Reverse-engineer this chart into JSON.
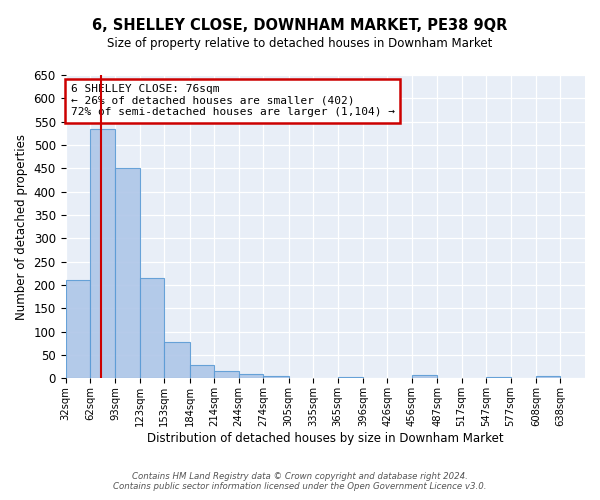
{
  "title": "6, SHELLEY CLOSE, DOWNHAM MARKET, PE38 9QR",
  "subtitle": "Size of property relative to detached houses in Downham Market",
  "xlabel": "Distribution of detached houses by size in Downham Market",
  "ylabel": "Number of detached properties",
  "bin_labels": [
    "32sqm",
    "62sqm",
    "93sqm",
    "123sqm",
    "153sqm",
    "184sqm",
    "214sqm",
    "244sqm",
    "274sqm",
    "305sqm",
    "335sqm",
    "365sqm",
    "396sqm",
    "426sqm",
    "456sqm",
    "487sqm",
    "517sqm",
    "547sqm",
    "577sqm",
    "608sqm",
    "638sqm"
  ],
  "bar_heights": [
    210,
    535,
    450,
    215,
    78,
    28,
    15,
    10,
    5,
    0,
    0,
    2,
    0,
    0,
    8,
    0,
    0,
    2,
    0,
    5
  ],
  "bar_color": "#aec6e8",
  "bar_edge_color": "#5b9bd5",
  "red_line_x": 76,
  "bin_edges": [
    32,
    62,
    93,
    123,
    153,
    184,
    214,
    244,
    274,
    305,
    335,
    365,
    396,
    426,
    456,
    487,
    517,
    547,
    577,
    608,
    638,
    668
  ],
  "tick_positions": [
    32,
    62,
    93,
    123,
    153,
    184,
    214,
    244,
    274,
    305,
    335,
    365,
    396,
    426,
    456,
    487,
    517,
    547,
    577,
    608,
    638
  ],
  "ylim": [
    0,
    650
  ],
  "yticks": [
    0,
    50,
    100,
    150,
    200,
    250,
    300,
    350,
    400,
    450,
    500,
    550,
    600,
    650
  ],
  "annotation_text": "6 SHELLEY CLOSE: 76sqm\n← 26% of detached houses are smaller (402)\n72% of semi-detached houses are larger (1,104) →",
  "footer1": "Contains HM Land Registry data © Crown copyright and database right 2024.",
  "footer2": "Contains public sector information licensed under the Open Government Licence v3.0."
}
